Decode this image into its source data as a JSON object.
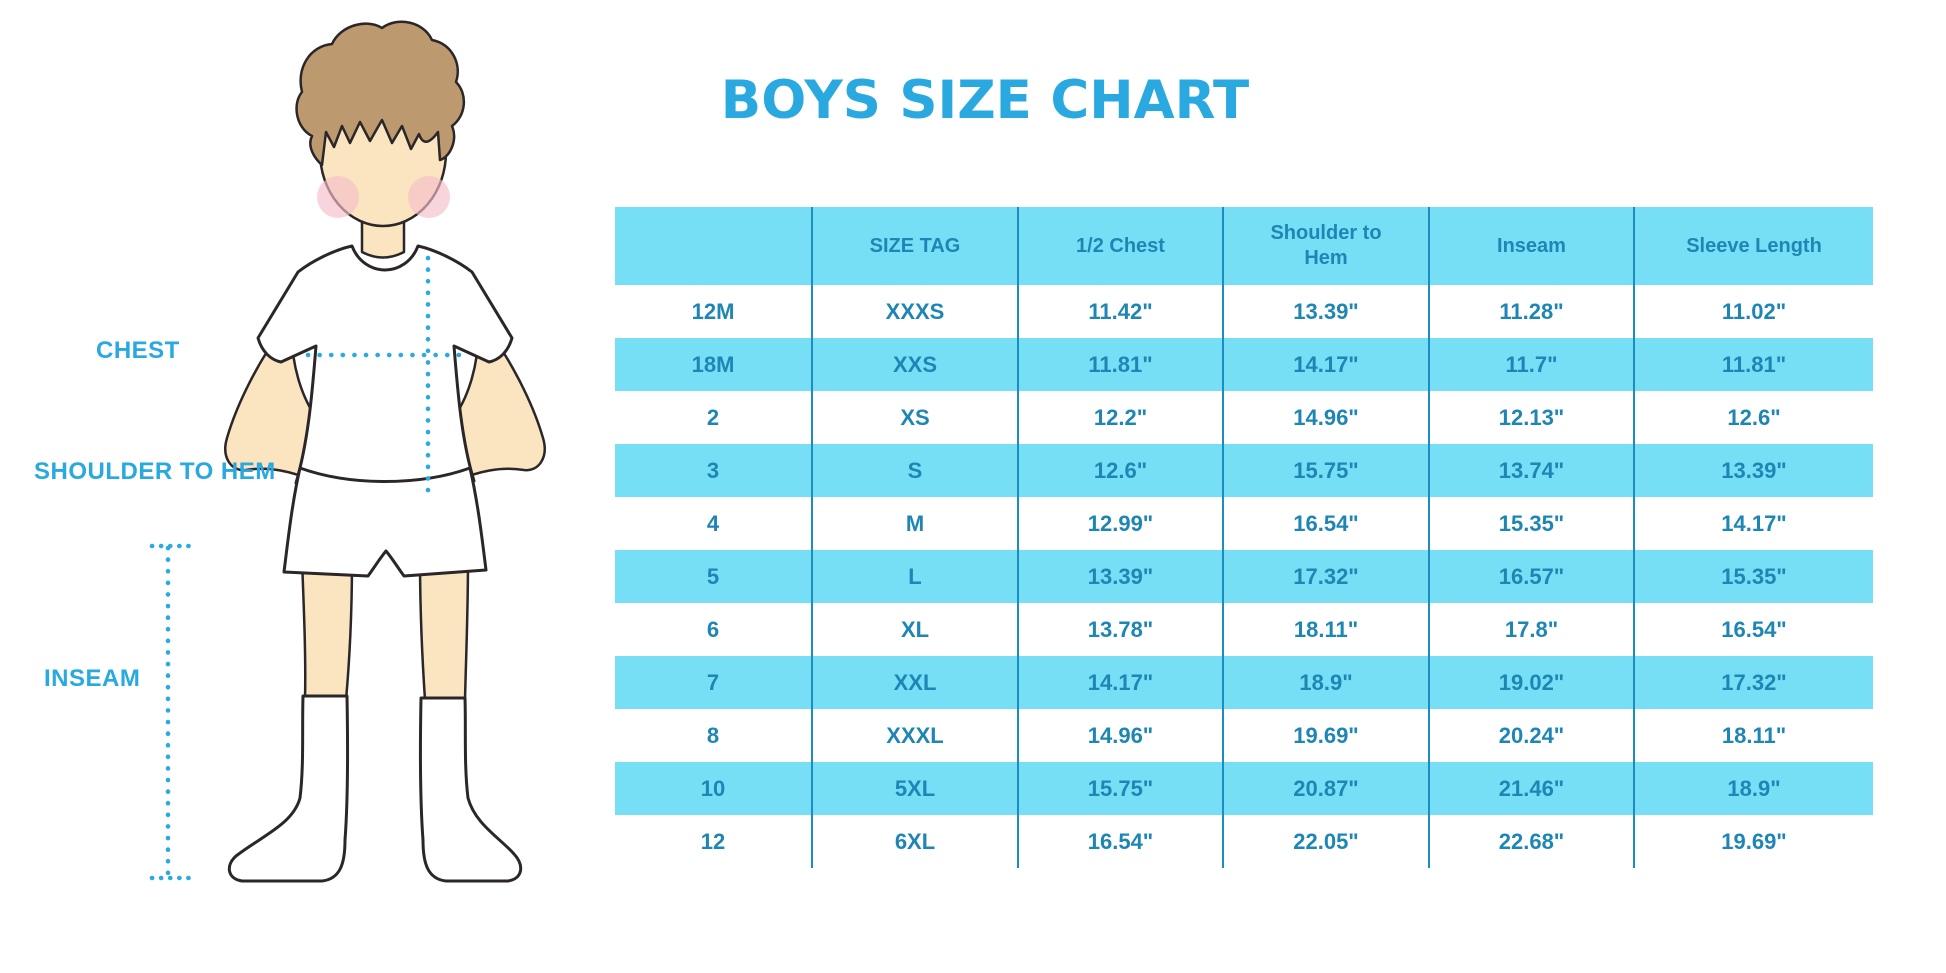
{
  "page": {
    "title": "BOYS SIZE CHART"
  },
  "figure": {
    "labels": {
      "chest": "CHEST",
      "shoulder_to_hem": "SHOULDER TO HEM",
      "inseam": "INSEAM"
    }
  },
  "colors": {
    "accent": "#29A9E0",
    "stripe": "#76DFF6",
    "tabletext": "#1E86B4",
    "divider": "#1D8CBE",
    "dots": "#29ABE2",
    "skin": "#FBE5C0",
    "hair": "#BD9970",
    "cheek": "#F5BDC9",
    "outline": "#2B2627"
  },
  "chart_data": {
    "type": "table",
    "title": "BOYS SIZE CHART",
    "columns": [
      "",
      "SIZE TAG",
      "1/2 Chest",
      "Shoulder to Hem",
      "Inseam",
      "Sleeve Length"
    ],
    "rows": [
      [
        "12M",
        "XXXS",
        "11.42\"",
        "13.39\"",
        "11.28\"",
        "11.02\""
      ],
      [
        "18M",
        "XXS",
        "11.81\"",
        "14.17\"",
        "11.7\"",
        "11.81\""
      ],
      [
        "2",
        "XS",
        "12.2\"",
        "14.96\"",
        "12.13\"",
        "12.6\""
      ],
      [
        "3",
        "S",
        "12.6\"",
        "15.75\"",
        "13.74\"",
        "13.39\""
      ],
      [
        "4",
        "M",
        "12.99\"",
        "16.54\"",
        "15.35\"",
        "14.17\""
      ],
      [
        "5",
        "L",
        "13.39\"",
        "17.32\"",
        "16.57\"",
        "15.35\""
      ],
      [
        "6",
        "XL",
        "13.78\"",
        "18.11\"",
        "17.8\"",
        "16.54\""
      ],
      [
        "7",
        "XXL",
        "14.17\"",
        "18.9\"",
        "19.02\"",
        "17.32\""
      ],
      [
        "8",
        "XXXL",
        "14.96\"",
        "19.69\"",
        "20.24\"",
        "18.11\""
      ],
      [
        "10",
        "5XL",
        "15.75\"",
        "20.87\"",
        "21.46\"",
        "18.9\""
      ],
      [
        "12",
        "6XL",
        "16.54\"",
        "22.05\"",
        "22.68\"",
        "19.69\""
      ]
    ]
  }
}
